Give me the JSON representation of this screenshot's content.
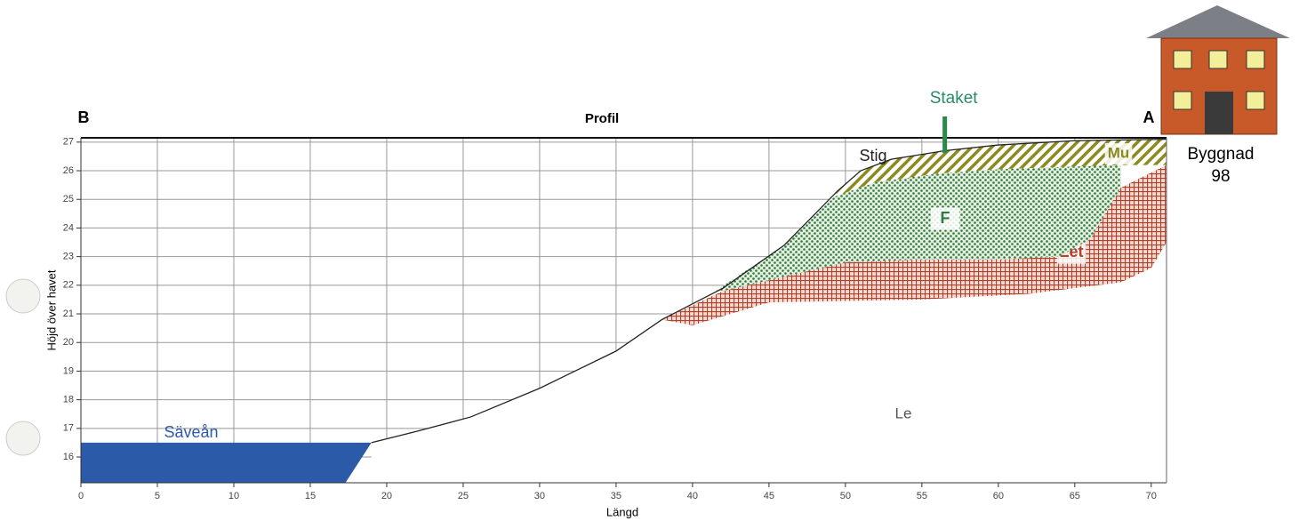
{
  "chart_data": {
    "type": "profile",
    "title": "Profil",
    "left_label": "B",
    "right_label": "A",
    "x_label": "Längd",
    "y_label": "Höjd över havet",
    "xlim": [
      0,
      71
    ],
    "ylim": [
      15.1,
      27.15
    ],
    "xticks": [
      0,
      5,
      10,
      15,
      20,
      25,
      30,
      35,
      40,
      45,
      50,
      55,
      60,
      65,
      70
    ],
    "yticks": [
      16,
      17,
      18,
      19,
      20,
      21,
      22,
      23,
      24,
      25,
      26,
      27
    ],
    "grid": true,
    "surface": {
      "name": "Stig",
      "color": "#222222",
      "x": [
        19,
        22,
        25.5,
        30,
        35,
        38,
        42,
        46,
        49.5,
        51,
        53,
        56.5,
        60,
        65,
        71
      ],
      "values": [
        16.5,
        16.9,
        17.4,
        18.4,
        19.7,
        20.8,
        21.9,
        23.4,
        25.3,
        26.0,
        26.4,
        26.7,
        26.9,
        27.05,
        27.1
      ]
    },
    "ground_label": "Le",
    "series": [
      {
        "name": "Säveån",
        "color": "#2a5aa8",
        "x": [
          0,
          19,
          17.3,
          0
        ],
        "values": [
          16.5,
          16.5,
          15.1,
          15.1
        ]
      },
      {
        "name": "Let",
        "color": "#b0412a",
        "x": [
          38,
          42,
          46,
          50,
          55,
          60,
          64,
          66,
          68,
          71,
          71,
          70,
          68,
          62,
          55,
          45,
          40
        ],
        "values": [
          20.8,
          21.8,
          22.3,
          22.8,
          22.9,
          22.9,
          23.0,
          23.6,
          25.4,
          26.2,
          23.5,
          22.6,
          22.1,
          21.7,
          21.5,
          21.4,
          20.6
        ]
      },
      {
        "name": "F",
        "color": "#2f7a3a",
        "x": [
          41.5,
          46,
          49.3,
          52,
          56,
          60,
          65,
          68,
          68,
          66,
          64,
          60,
          55,
          50,
          46,
          42
        ],
        "values": [
          21.8,
          23.4,
          25.1,
          25.6,
          25.9,
          26.05,
          26.15,
          26.2,
          25.4,
          23.6,
          23.0,
          22.9,
          22.9,
          22.8,
          22.3,
          21.8
        ]
      },
      {
        "name": "Mu",
        "color": "#8c8a1e",
        "x": [
          49.5,
          51,
          53,
          56.5,
          60,
          65,
          71,
          71,
          68,
          65,
          60,
          56,
          52,
          49.3
        ],
        "values": [
          25.3,
          26.0,
          26.4,
          26.7,
          26.9,
          27.05,
          27.1,
          26.2,
          26.2,
          26.15,
          26.05,
          25.9,
          25.6,
          25.1
        ]
      }
    ],
    "annotations": [
      {
        "text": "Staket",
        "x": 56.5
      }
    ],
    "building": [
      "Byggnad",
      "98"
    ]
  }
}
